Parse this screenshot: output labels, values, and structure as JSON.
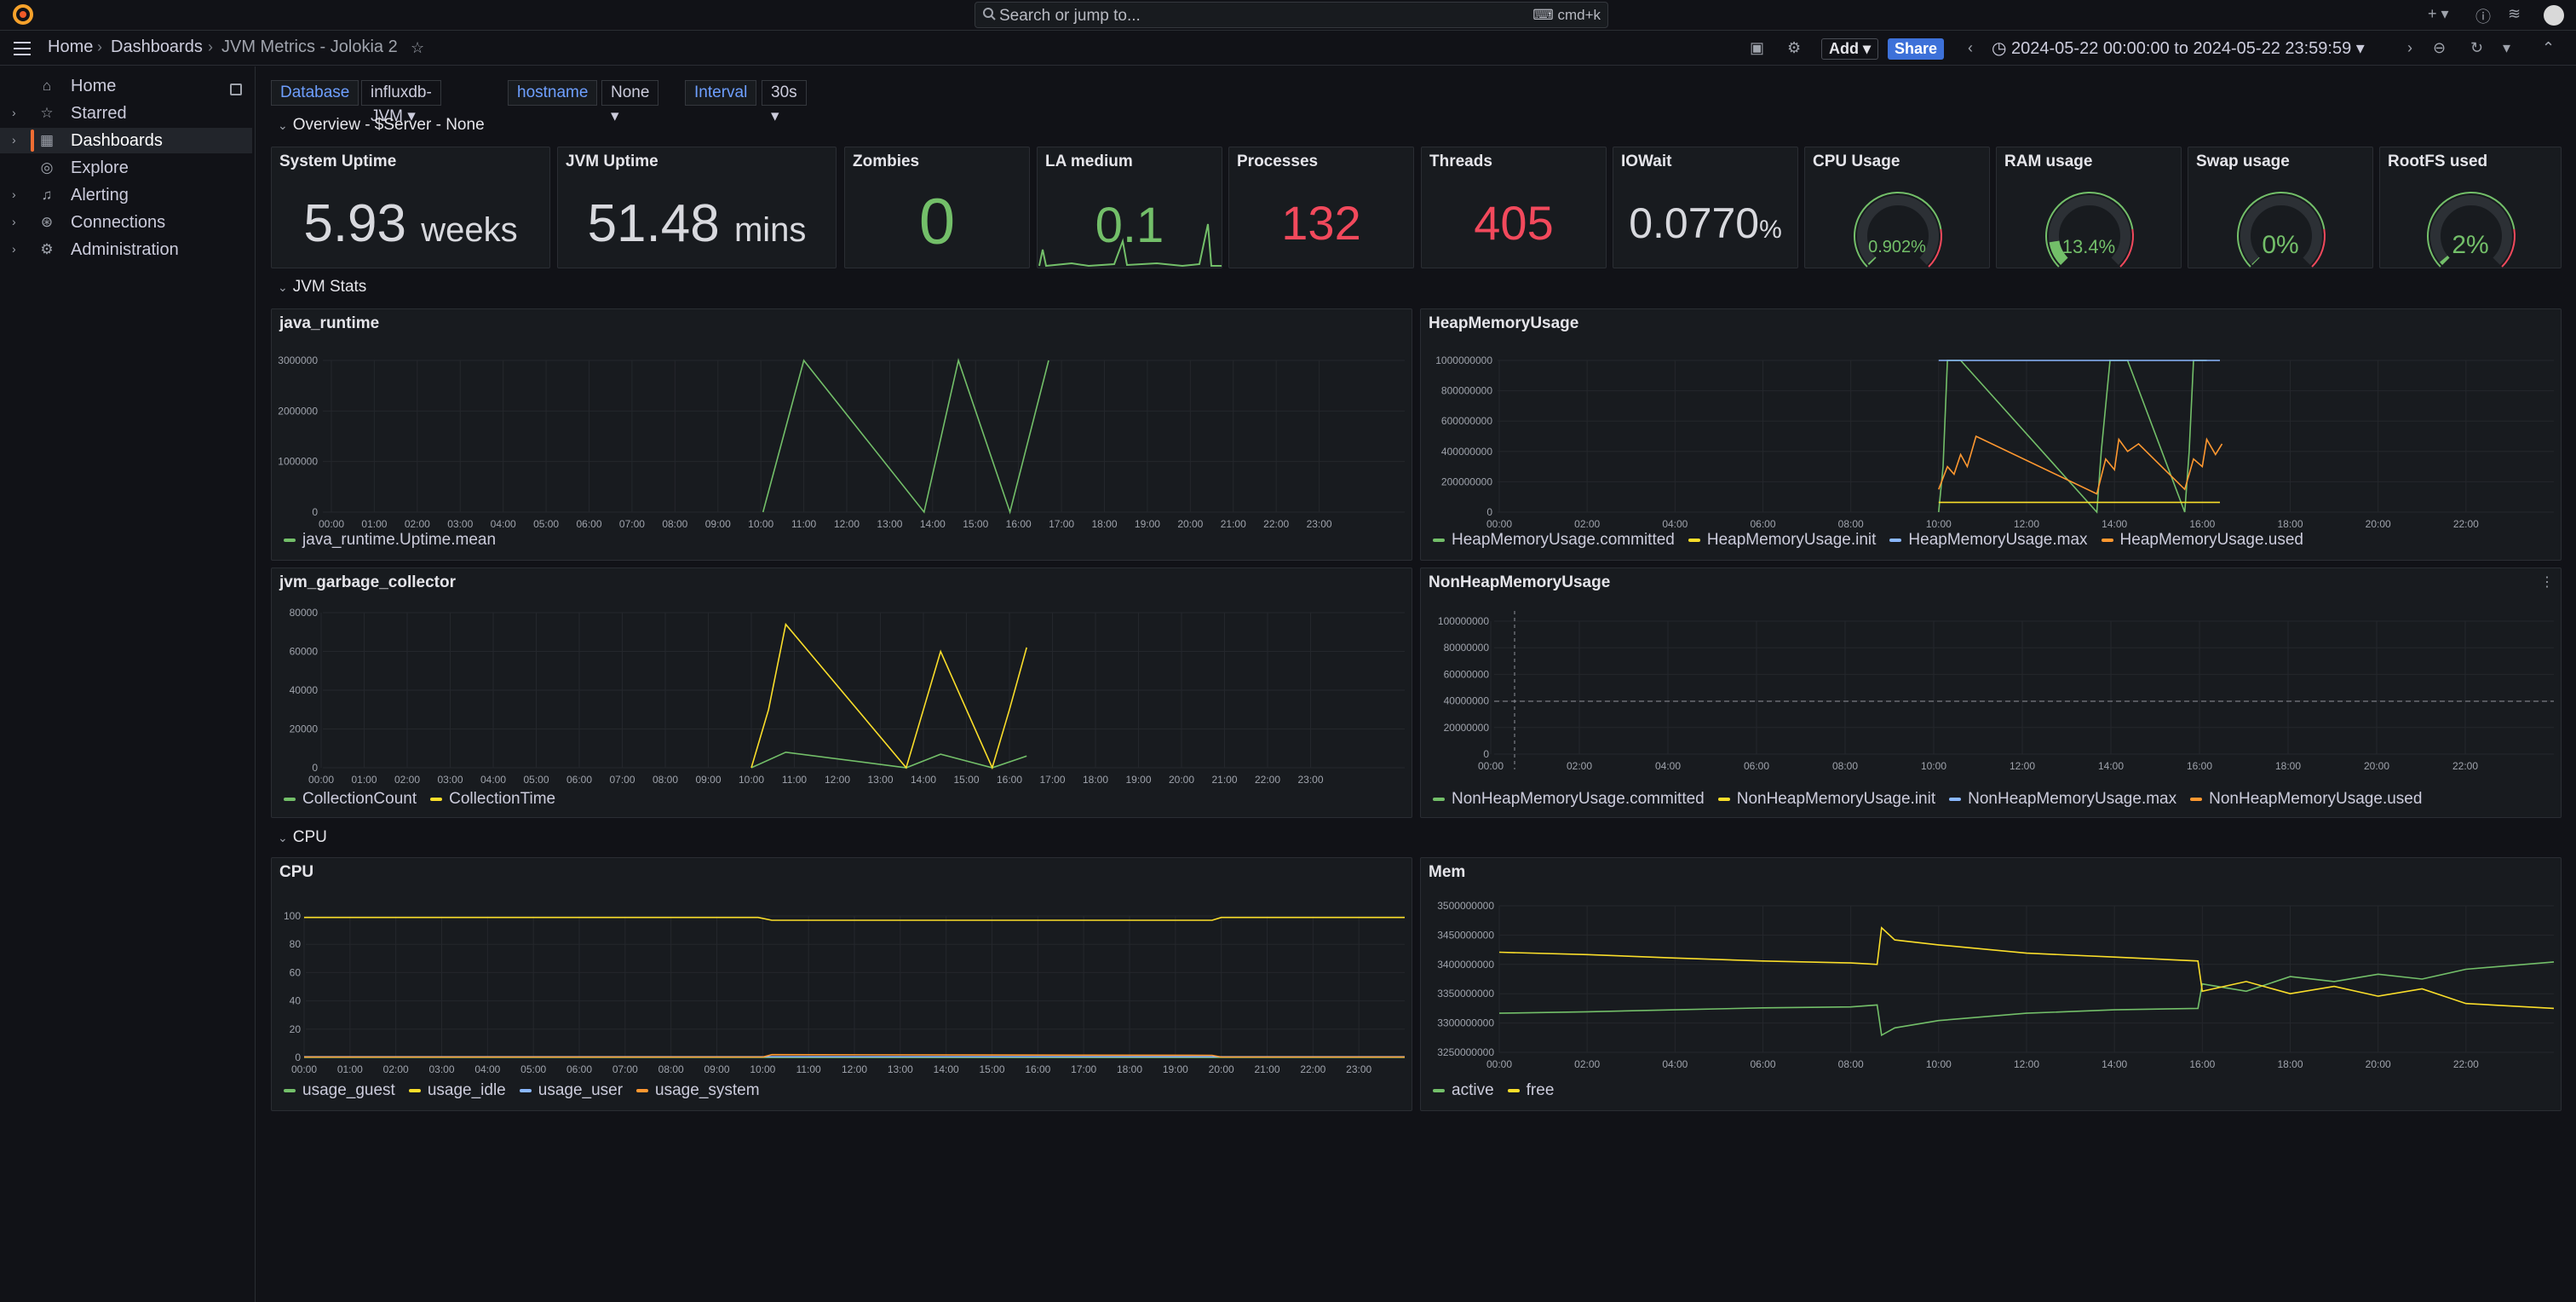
{
  "topbar": {
    "search_placeholder": "Search or jump to...",
    "search_shortcut": "cmd+k"
  },
  "breadcrumb": [
    "Home",
    "Dashboards",
    "JVM Metrics - Jolokia 2"
  ],
  "toolbar": {
    "add_label": "Add",
    "share_label": "Share",
    "time_range": "2024-05-22 00:00:00 to 2024-05-22 23:59:59"
  },
  "sidebar": {
    "items": [
      {
        "label": "Home",
        "icon": "home-icon"
      },
      {
        "label": "Starred",
        "icon": "star-icon"
      },
      {
        "label": "Dashboards",
        "icon": "dashboards-icon"
      },
      {
        "label": "Explore",
        "icon": "compass-icon"
      },
      {
        "label": "Alerting",
        "icon": "bell-icon"
      },
      {
        "label": "Connections",
        "icon": "connections-icon"
      },
      {
        "label": "Administration",
        "icon": "gear-icon"
      }
    ]
  },
  "variables": [
    {
      "label": "Database",
      "value": "influxdb-JVM"
    },
    {
      "label": "hostname",
      "value": "None"
    },
    {
      "label": "Interval",
      "value": "30s"
    }
  ],
  "rows": {
    "overview": "Overview - $Server - None",
    "jvm": "JVM Stats",
    "cpu": "CPU"
  },
  "colors": {
    "green": "#73bf69",
    "red": "#f2495c",
    "yellow": "#fade2a",
    "blue": "#8ab8ff",
    "orange": "#ff9830",
    "accent": "#f06d33",
    "share": "#3d71d9"
  },
  "stats": [
    {
      "title": "System Uptime",
      "value": "5.93",
      "unit": "weeks",
      "color": "#d8d9de"
    },
    {
      "title": "JVM Uptime",
      "value": "51.48",
      "unit": "mins",
      "color": "#d8d9de"
    },
    {
      "title": "Zombies",
      "value": "0",
      "unit": "",
      "color": "#73bf69"
    },
    {
      "title": "LA medium",
      "value": "0.1",
      "unit": "",
      "color": "#73bf69"
    },
    {
      "title": "Processes",
      "value": "132",
      "unit": "",
      "color": "#f2495c"
    },
    {
      "title": "Threads",
      "value": "405",
      "unit": "",
      "color": "#f2495c"
    },
    {
      "title": "IOWait",
      "value": "0.0770",
      "unit": "%",
      "color": "#d8d9de"
    }
  ],
  "gauges": [
    {
      "title": "CPU Usage",
      "value": "0.902%",
      "fraction": 0.009
    },
    {
      "title": "RAM usage",
      "value": "13.4%",
      "fraction": 0.134
    },
    {
      "title": "Swap usage",
      "value": "0%",
      "fraction": 0.0
    },
    {
      "title": "RootFS used",
      "value": "2%",
      "fraction": 0.02
    }
  ],
  "chart_data": [
    {
      "type": "line",
      "title": "java_runtime",
      "x_ticks": [
        "00:00",
        "01:00",
        "02:00",
        "03:00",
        "04:00",
        "05:00",
        "06:00",
        "07:00",
        "08:00",
        "09:00",
        "10:00",
        "11:00",
        "12:00",
        "13:00",
        "14:00",
        "15:00",
        "16:00",
        "17:00",
        "18:00",
        "19:00",
        "20:00",
        "21:00",
        "22:00",
        "23:00"
      ],
      "y_ticks": [
        "3000000",
        "2000000",
        "1000000",
        "0"
      ],
      "ylim": [
        0,
        3000000
      ],
      "series": [
        {
          "name": "java_runtime.Uptime.mean",
          "color": "#73bf69",
          "points": [
            [
              10.05,
              0
            ],
            [
              11.0,
              3000000
            ],
            [
              13.8,
              0
            ],
            [
              14.6,
              3000000
            ],
            [
              15.8,
              0
            ],
            [
              16.7,
              3000000
            ]
          ]
        }
      ]
    },
    {
      "type": "line",
      "title": "HeapMemoryUsage",
      "x_ticks": [
        "00:00",
        "02:00",
        "04:00",
        "06:00",
        "08:00",
        "10:00",
        "12:00",
        "14:00",
        "16:00",
        "18:00",
        "20:00",
        "22:00"
      ],
      "y_ticks": [
        "1000000000",
        "800000000",
        "600000000",
        "400000000",
        "200000000",
        "0"
      ],
      "ylim": [
        0,
        1000000000
      ],
      "series": [
        {
          "name": "HeapMemoryUsage.committed",
          "color": "#73bf69",
          "points": [
            [
              10.0,
              0
            ],
            [
              10.1,
              300000000
            ],
            [
              10.2,
              1000000000
            ],
            [
              10.5,
              1000000000
            ],
            [
              13.6,
              0
            ],
            [
              13.7,
              400000000
            ],
            [
              13.9,
              1000000000
            ],
            [
              14.3,
              1000000000
            ],
            [
              15.6,
              0
            ],
            [
              15.7,
              400000000
            ],
            [
              15.8,
              1000000000
            ],
            [
              16.1,
              1000000000
            ]
          ]
        },
        {
          "name": "HeapMemoryUsage.init",
          "color": "#fade2a",
          "points": [
            [
              10.0,
              64000000
            ],
            [
              10.8,
              64000000
            ],
            [
              13.6,
              64000000
            ],
            [
              14.5,
              64000000
            ],
            [
              15.6,
              64000000
            ],
            [
              16.4,
              64000000
            ]
          ]
        },
        {
          "name": "HeapMemoryUsage.max",
          "color": "#8ab8ff",
          "points": [
            [
              10.0,
              1000000000
            ],
            [
              10.8,
              1000000000
            ],
            [
              13.6,
              1000000000
            ],
            [
              14.5,
              1000000000
            ],
            [
              15.6,
              1000000000
            ],
            [
              16.4,
              1000000000
            ]
          ]
        },
        {
          "name": "HeapMemoryUsage.used",
          "color": "#ff9830",
          "points": [
            [
              10.0,
              150000000
            ],
            [
              10.2,
              300000000
            ],
            [
              10.35,
              250000000
            ],
            [
              10.5,
              380000000
            ],
            [
              10.65,
              300000000
            ],
            [
              10.85,
              500000000
            ],
            [
              13.6,
              120000000
            ],
            [
              13.8,
              350000000
            ],
            [
              14.0,
              280000000
            ],
            [
              14.1,
              480000000
            ],
            [
              14.3,
              400000000
            ],
            [
              14.55,
              450000000
            ],
            [
              15.6,
              150000000
            ],
            [
              15.8,
              350000000
            ],
            [
              16.0,
              300000000
            ],
            [
              16.1,
              480000000
            ],
            [
              16.3,
              380000000
            ],
            [
              16.45,
              450000000
            ]
          ]
        }
      ]
    },
    {
      "type": "line",
      "title": "jvm_garbage_collector",
      "x_ticks": [
        "00:00",
        "01:00",
        "02:00",
        "03:00",
        "04:00",
        "05:00",
        "06:00",
        "07:00",
        "08:00",
        "09:00",
        "10:00",
        "11:00",
        "12:00",
        "13:00",
        "14:00",
        "15:00",
        "16:00",
        "17:00",
        "18:00",
        "19:00",
        "20:00",
        "21:00",
        "22:00",
        "23:00"
      ],
      "y_ticks": [
        "80000",
        "60000",
        "40000",
        "20000",
        "0"
      ],
      "ylim": [
        0,
        80000
      ],
      "series": [
        {
          "name": "CollectionCount",
          "color": "#73bf69",
          "points": [
            [
              10.0,
              0
            ],
            [
              10.8,
              8000
            ],
            [
              13.6,
              0
            ],
            [
              14.4,
              7000
            ],
            [
              15.6,
              0
            ],
            [
              16.4,
              6000
            ]
          ]
        },
        {
          "name": "CollectionTime",
          "color": "#fade2a",
          "points": [
            [
              10.0,
              0
            ],
            [
              10.4,
              30000
            ],
            [
              10.8,
              74000
            ],
            [
              13.6,
              0
            ],
            [
              14.0,
              30000
            ],
            [
              14.4,
              60000
            ],
            [
              15.6,
              0
            ],
            [
              16.0,
              30000
            ],
            [
              16.4,
              62000
            ]
          ]
        }
      ]
    },
    {
      "type": "line",
      "title": "NonHeapMemoryUsage",
      "x_ticks": [
        "00:00",
        "02:00",
        "04:00",
        "06:00",
        "08:00",
        "10:00",
        "12:00",
        "14:00",
        "16:00",
        "18:00",
        "20:00",
        "22:00"
      ],
      "y_ticks": [
        "100000000",
        "80000000",
        "60000000",
        "40000000",
        "20000000",
        "0"
      ],
      "ylim": [
        0,
        100000000
      ],
      "series": [
        {
          "name": "NonHeapMemoryUsage.committed",
          "color": "#73bf69",
          "points": []
        },
        {
          "name": "NonHeapMemoryUsage.init",
          "color": "#fade2a",
          "points": []
        },
        {
          "name": "NonHeapMemoryUsage.max",
          "color": "#8ab8ff",
          "points": []
        },
        {
          "name": "NonHeapMemoryUsage.used",
          "color": "#ff9830",
          "points": []
        }
      ]
    },
    {
      "type": "line",
      "title": "CPU",
      "x_ticks": [
        "00:00",
        "01:00",
        "02:00",
        "03:00",
        "04:00",
        "05:00",
        "06:00",
        "07:00",
        "08:00",
        "09:00",
        "10:00",
        "11:00",
        "12:00",
        "13:00",
        "14:00",
        "15:00",
        "16:00",
        "17:00",
        "18:00",
        "19:00",
        "20:00",
        "21:00",
        "22:00",
        "23:00"
      ],
      "y_ticks": [
        "100",
        "80",
        "60",
        "40",
        "20",
        "0"
      ],
      "ylim": [
        0,
        100
      ],
      "series": [
        {
          "name": "usage_guest",
          "color": "#73bf69",
          "points": [
            [
              0,
              0
            ],
            [
              24,
              0
            ]
          ]
        },
        {
          "name": "usage_idle",
          "color": "#fade2a",
          "points": [
            [
              0,
              99
            ],
            [
              9.9,
              99
            ],
            [
              10.2,
              97
            ],
            [
              19.8,
              97
            ],
            [
              20.0,
              99
            ],
            [
              24,
              99
            ]
          ]
        },
        {
          "name": "usage_user",
          "color": "#8ab8ff",
          "points": [
            [
              0,
              0.5
            ],
            [
              24,
              0.5
            ]
          ]
        },
        {
          "name": "usage_system",
          "color": "#ff9830",
          "points": [
            [
              0,
              0.3
            ],
            [
              10.0,
              0.3
            ],
            [
              10.2,
              2
            ],
            [
              19.8,
              1.5
            ],
            [
              20.0,
              0.3
            ],
            [
              24,
              0.3
            ]
          ]
        }
      ]
    },
    {
      "type": "line",
      "title": "Mem",
      "x_ticks": [
        "00:00",
        "02:00",
        "04:00",
        "06:00",
        "08:00",
        "10:00",
        "12:00",
        "14:00",
        "16:00",
        "18:00",
        "20:00",
        "22:00"
      ],
      "y_ticks": [
        "3500000000",
        "3450000000",
        "3400000000",
        "3350000000",
        "3300000000",
        "3250000000"
      ],
      "ylim": [
        3225000000,
        3525000000
      ],
      "series": [
        {
          "name": "active",
          "color": "#73bf69",
          "points": [
            [
              0,
              3305000000
            ],
            [
              2,
              3308000000
            ],
            [
              4,
              3312000000
            ],
            [
              6,
              3316000000
            ],
            [
              8,
              3318000000
            ],
            [
              8.6,
              3322000000
            ],
            [
              8.7,
              3260000000
            ],
            [
              9.0,
              3275000000
            ],
            [
              10,
              3290000000
            ],
            [
              12,
              3305000000
            ],
            [
              14,
              3312000000
            ],
            [
              15.9,
              3315000000
            ],
            [
              16,
              3365000000
            ],
            [
              17,
              3350000000
            ],
            [
              18,
              3380000000
            ],
            [
              19,
              3370000000
            ],
            [
              20,
              3385000000
            ],
            [
              21,
              3375000000
            ],
            [
              22,
              3395000000
            ],
            [
              24,
              3410000000
            ]
          ]
        },
        {
          "name": "free",
          "color": "#fade2a",
          "points": [
            [
              0,
              3430000000
            ],
            [
              2,
              3425000000
            ],
            [
              4,
              3418000000
            ],
            [
              6,
              3412000000
            ],
            [
              8,
              3408000000
            ],
            [
              8.6,
              3405000000
            ],
            [
              8.7,
              3480000000
            ],
            [
              9.0,
              3455000000
            ],
            [
              10,
              3445000000
            ],
            [
              12,
              3428000000
            ],
            [
              14,
              3420000000
            ],
            [
              15.9,
              3412000000
            ],
            [
              16,
              3350000000
            ],
            [
              17,
              3370000000
            ],
            [
              18,
              3345000000
            ],
            [
              19,
              3360000000
            ],
            [
              20,
              3340000000
            ],
            [
              21,
              3355000000
            ],
            [
              22,
              3325000000
            ],
            [
              24,
              3315000000
            ]
          ]
        }
      ]
    }
  ]
}
